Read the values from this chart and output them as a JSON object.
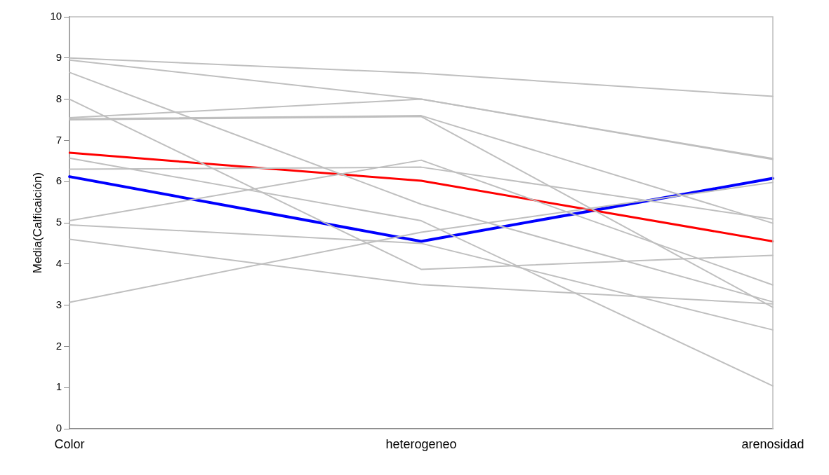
{
  "chart_data": {
    "type": "line",
    "ylabel": "Media(Calficaición)",
    "categories": [
      "Color",
      "heterogeneo",
      "arenosidad"
    ],
    "ylim": [
      0,
      10
    ],
    "yticks": [
      0,
      1,
      2,
      3,
      4,
      5,
      6,
      7,
      8,
      9,
      10
    ],
    "grid": false,
    "legend": false,
    "marker": "none",
    "line_style": "solid",
    "series": [
      {
        "color": "#bfbfbf",
        "values": [
          9.0,
          8.63,
          8.07
        ]
      },
      {
        "color": "#bfbfbf",
        "values": [
          8.95,
          8.0,
          6.56
        ]
      },
      {
        "color": "#bfbfbf",
        "values": [
          7.55,
          8.0,
          6.54
        ]
      },
      {
        "color": "#bfbfbf",
        "values": [
          7.52,
          7.6,
          4.99
        ]
      },
      {
        "color": "#bfbfbf",
        "values": [
          7.5,
          7.58,
          2.95
        ]
      },
      {
        "color": "#bfbfbf",
        "values": [
          5.05,
          6.52,
          3.49
        ]
      },
      {
        "color": "#bfbfbf",
        "values": [
          6.3,
          6.35,
          5.09
        ]
      },
      {
        "color": "#bfbfbf",
        "values": [
          8.65,
          5.45,
          3.08
        ]
      },
      {
        "color": "#bfbfbf",
        "values": [
          6.57,
          5.05,
          1.04
        ]
      },
      {
        "color": "#bfbfbf",
        "values": [
          3.07,
          4.77,
          5.98
        ]
      },
      {
        "color": "#bfbfbf",
        "values": [
          4.95,
          4.5,
          2.4
        ]
      },
      {
        "color": "#bfbfbf",
        "values": [
          8.0,
          3.87,
          4.21
        ]
      },
      {
        "color": "#bfbfbf",
        "values": [
          4.6,
          3.5,
          3.03
        ]
      },
      {
        "color": "#ff0000",
        "values": [
          6.7,
          6.02,
          4.55
        ]
      },
      {
        "color": "#0000ff",
        "values": [
          6.12,
          4.55,
          6.08
        ]
      }
    ]
  }
}
